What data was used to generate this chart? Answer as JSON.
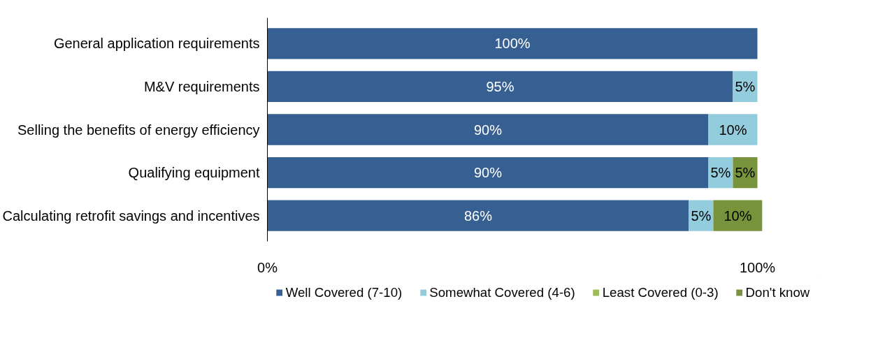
{
  "chart_data": {
    "type": "bar",
    "orientation": "horizontal",
    "stacked": true,
    "categories": [
      "General application requirements",
      "M&V requirements",
      "Selling the benefits of energy efficiency",
      "Qualifying equipment",
      "Calculating retrofit savings and incentives"
    ],
    "series": [
      {
        "name": "Well Covered (7-10)",
        "color": "#376092",
        "values": [
          100,
          95,
          90,
          90,
          86
        ],
        "value_labels": [
          "100%",
          "95%",
          "90%",
          "90%",
          "86%"
        ]
      },
      {
        "name": "Somewhat Covered (4-6)",
        "color": "#93cddd",
        "values": [
          0,
          5,
          10,
          5,
          5
        ],
        "value_labels": [
          null,
          "5%",
          "10%",
          "5%",
          "5%"
        ]
      },
      {
        "name": "Least Covered (0-3)",
        "color": "#9bbb59",
        "values": [
          0,
          0,
          0,
          0,
          0
        ],
        "value_labels": [
          null,
          null,
          null,
          null,
          null
        ]
      },
      {
        "name": "Don't know",
        "color": "#77933c",
        "values": [
          0,
          0,
          0,
          5,
          10
        ],
        "value_labels": [
          null,
          null,
          null,
          "5%",
          "10%"
        ]
      }
    ],
    "xlim": [
      0,
      101
    ],
    "xticks": [
      {
        "value": 0,
        "label": "0%"
      },
      {
        "value": 100,
        "label": "100%"
      }
    ],
    "grid": false,
    "legend": "bottom"
  }
}
